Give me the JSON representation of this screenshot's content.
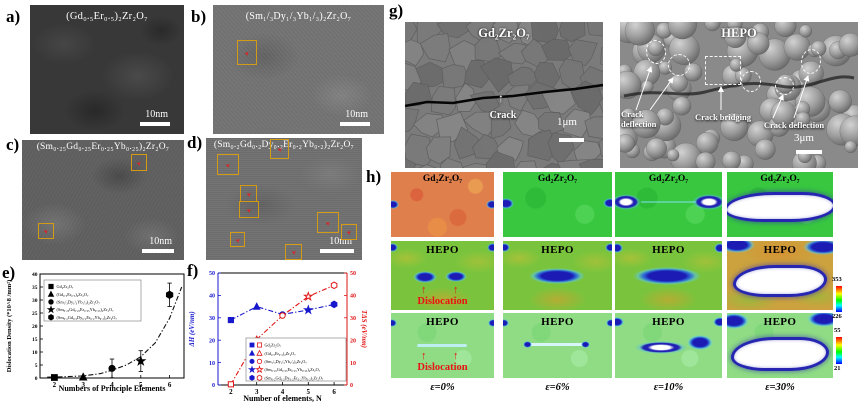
{
  "figure": {
    "panel_labels": {
      "a": "a)",
      "b": "b)",
      "c": "c)",
      "d": "d)",
      "e": "e)",
      "f": "f)",
      "g": "g)",
      "h": "h)"
    }
  },
  "icons": {
    "up_arrow": "↑"
  },
  "panels": {
    "a": {
      "formula": "(Gd₀.₅Er₀.₅)₂Zr₂O₇",
      "scale_bar": "10nm"
    },
    "b": {
      "formula": "(Sm₁/₃Dy₁/₃Yb₁/₃)₂Zr₂O₇",
      "scale_bar": "10nm"
    },
    "c": {
      "formula": "(Sm₀.₂₅Gd₀.₂₅Er₀.₂₅Yb₀.₂₅)₂Zr₂O₇",
      "scale_bar": "10nm"
    },
    "d": {
      "formula": "(Sm₀.₂Gd₀.₂Dy₀.₂Er₀.₂Yb₀.₂)₂Zr₂O₇",
      "scale_bar": "10nm"
    },
    "g": {
      "left": {
        "title": "Gd₂Zr₂O₇",
        "crack_label": "Crack",
        "scale_bar": "1μm"
      },
      "right": {
        "title": "HEPO",
        "label_left": "Crack deflection",
        "label_center": "Crack bridging",
        "label_right": "Crack deflection",
        "scale_bar": "3μm"
      }
    },
    "h": {
      "row_titles": [
        "Gd₂Zr₂O₇",
        "HEPO",
        "HEPO"
      ],
      "strain_labels": [
        "ε=0%",
        "ε=6%",
        "ε=10%",
        "ε=30%"
      ],
      "dislocation_label": "Dislocation",
      "colorbar_top": {
        "max": "353",
        "min": "226"
      },
      "colorbar_bottom": {
        "max": "55",
        "min": "21"
      }
    }
  },
  "chart_data": [
    {
      "type": "scatter",
      "xlabel": "Numbers of Principle Elements",
      "ylabel": "Dislocation Density (*10^8 /mm²)",
      "xlim": [
        1.5,
        6.5
      ],
      "ylim": [
        0,
        40
      ],
      "xticks": [
        2,
        3,
        4,
        5,
        6
      ],
      "yticks": [
        0,
        5,
        10,
        15,
        20,
        25,
        30,
        35,
        40
      ],
      "grid": false,
      "legend_position": "upper-left",
      "points": [
        {
          "x": 2,
          "y": 0.2,
          "yerr": 0.3,
          "marker": "square",
          "label": "Gd₂Zr₂O₇"
        },
        {
          "x": 3,
          "y": 0.35,
          "yerr": 0.5,
          "marker": "triangle",
          "label": "(Gd₀.₅Er₀.₅)₂Zr₂O₇"
        },
        {
          "x": 4,
          "y": 3.7,
          "yerr": 3.6,
          "marker": "circle",
          "label": "(Sm₁/₃Dy₁/₃Yb₁/₃)₂Zr₂O₇"
        },
        {
          "x": 5,
          "y": 6.5,
          "yerr": 4.0,
          "marker": "star",
          "label": "(Sm₀.₂₅Gd₀.₂₅Er₀.₂₅Yb₀.₂₅)₂Zr₂O₇"
        },
        {
          "x": 6,
          "y": 32,
          "yerr": 4.5,
          "marker": "hexagon",
          "label": "(Sm₀.₂Gd₀.₂Dy₀.₂Er₀.₂Yb₀.₂)₂Zr₂O₇"
        }
      ],
      "fit_curve": {
        "style": "dash-dot",
        "points": [
          [
            1.75,
            0.3
          ],
          [
            2.3,
            0.45
          ],
          [
            3,
            0.8
          ],
          [
            3.6,
            1.7
          ],
          [
            4,
            3.0
          ],
          [
            4.5,
            5.0
          ],
          [
            5,
            8.2
          ],
          [
            5.5,
            13.5
          ],
          [
            6,
            23.0
          ],
          [
            6.42,
            35.0
          ]
        ]
      }
    },
    {
      "type": "line",
      "xlabel": "Number of elements, N",
      "ylabel_left": "ΔH (eV/nm)",
      "ylabel_right": "TΔS (eV/nm)",
      "xlim": [
        1.5,
        6.5
      ],
      "ylim_left": [
        0,
        50
      ],
      "ylim_right": [
        0,
        50
      ],
      "xticks": [
        2,
        3,
        4,
        5,
        6
      ],
      "yticks": [
        0,
        10,
        20,
        30,
        40,
        50
      ],
      "marker_shapes": [
        "square",
        "triangle",
        "circle",
        "star",
        "hexagon"
      ],
      "legend_labels": [
        "Gd₂Zr₂O₇",
        "(Gd₀.₅Er₀.₅)₂Zr₂O₇",
        "(Sm₁/₃Dy₁/₃Yb₁/₃)₂Zr₂O₇",
        "(Sm₀.₂₅Gd₀.₂₅Er₀.₂₅Yb₀.₂₅)₂Zr₂O₇",
        "(Sm₀.₂Gd₀.₂Dy₀.₂Er₀.₂Yb₀.₂)₂Zr₂O₇"
      ],
      "series": [
        {
          "name": "ΔH",
          "axis": "left",
          "color": "#1818cc",
          "marker_fill": "filled",
          "line_style": "dash-dot",
          "x": [
            2,
            3,
            4,
            5,
            6
          ],
          "y": [
            29,
            35,
            31.5,
            33.5,
            36
          ]
        },
        {
          "name": "TΔS",
          "axis": "right",
          "color": "#e01616",
          "marker_fill": "open",
          "line_style": "dash-dot",
          "x": [
            2,
            3,
            4,
            5,
            6
          ],
          "y": [
            0.3,
            20.3,
            31,
            39.5,
            44.5
          ]
        }
      ]
    }
  ]
}
